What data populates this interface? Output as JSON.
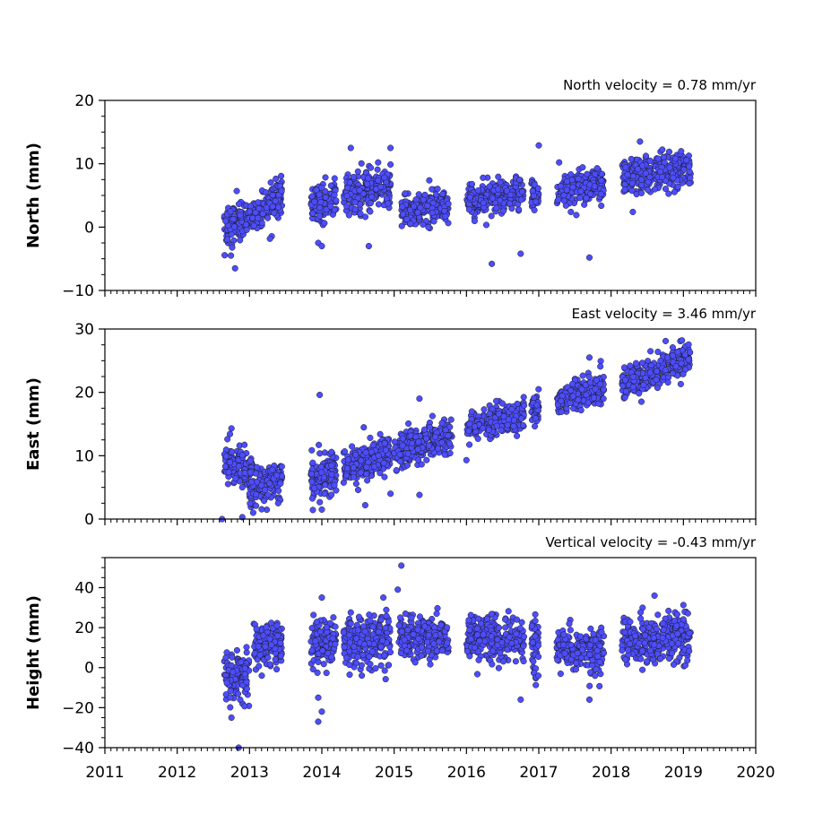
{
  "chart_data": [
    {
      "type": "scatter",
      "panel": "north",
      "ylabel": "North (mm)",
      "annotation": "North velocity = 0.78 mm/yr",
      "velocity_mm_per_yr": 0.78,
      "xlim": [
        2011,
        2020
      ],
      "ylim": [
        -10,
        20
      ],
      "yticks": [
        -10,
        0,
        10,
        20
      ],
      "xticks": [
        2011,
        2012,
        2013,
        2014,
        2015,
        2016,
        2017,
        2018,
        2019,
        2020
      ],
      "show_xtick_labels": false,
      "color": "#4d4dff",
      "segments": [
        {
          "x_start": 2012.65,
          "x_end": 2012.95,
          "y_start": 0.0,
          "y_end": 1.5,
          "spread": 1.8
        },
        {
          "x_start": 2012.95,
          "x_end": 2013.45,
          "y_start": 1.5,
          "y_end": 5.0,
          "spread": 1.5
        },
        {
          "x_start": 2013.85,
          "x_end": 2014.2,
          "y_start": 3.5,
          "y_end": 4.5,
          "spread": 1.5
        },
        {
          "x_start": 2014.3,
          "x_end": 2014.95,
          "y_start": 5.0,
          "y_end": 6.5,
          "spread": 1.8
        },
        {
          "x_start": 2015.1,
          "x_end": 2015.75,
          "y_start": 2.5,
          "y_end": 3.5,
          "spread": 1.5
        },
        {
          "x_start": 2016.0,
          "x_end": 2016.8,
          "y_start": 4.0,
          "y_end": 5.5,
          "spread": 1.2
        },
        {
          "x_start": 2016.9,
          "x_end": 2017.0,
          "y_start": 5.0,
          "y_end": 5.0,
          "spread": 1.2
        },
        {
          "x_start": 2017.25,
          "x_end": 2017.9,
          "y_start": 5.5,
          "y_end": 7.0,
          "spread": 1.5
        },
        {
          "x_start": 2018.15,
          "x_end": 2019.1,
          "y_start": 8.0,
          "y_end": 9.5,
          "spread": 1.5
        }
      ],
      "outliers": [
        {
          "x": 2012.8,
          "y": -6.5
        },
        {
          "x": 2013.95,
          "y": -2.5
        },
        {
          "x": 2014.0,
          "y": -3.0
        },
        {
          "x": 2014.65,
          "y": -3.0
        },
        {
          "x": 2016.35,
          "y": -5.8
        },
        {
          "x": 2016.75,
          "y": -4.2
        },
        {
          "x": 2017.7,
          "y": -4.8
        },
        {
          "x": 2014.4,
          "y": 12.5
        },
        {
          "x": 2014.95,
          "y": 12.5
        },
        {
          "x": 2017.0,
          "y": 12.9
        },
        {
          "x": 2018.4,
          "y": 13.5
        },
        {
          "x": 2018.3,
          "y": 2.4
        }
      ]
    },
    {
      "type": "scatter",
      "panel": "east",
      "ylabel": "East (mm)",
      "annotation": "East velocity = 3.46 mm/yr",
      "velocity_mm_per_yr": 3.46,
      "xlim": [
        2011,
        2020
      ],
      "ylim": [
        0,
        30
      ],
      "yticks": [
        0,
        10,
        20,
        30
      ],
      "xticks": [
        2011,
        2012,
        2013,
        2014,
        2015,
        2016,
        2017,
        2018,
        2019,
        2020
      ],
      "show_xtick_labels": false,
      "color": "#4d4dff",
      "segments": [
        {
          "x_start": 2012.65,
          "x_end": 2013.05,
          "y_start": 9.0,
          "y_end": 8.0,
          "spread": 1.6
        },
        {
          "x_start": 2013.0,
          "x_end": 2013.45,
          "y_start": 4.0,
          "y_end": 6.5,
          "spread": 1.6
        },
        {
          "x_start": 2013.85,
          "x_end": 2014.2,
          "y_start": 6.5,
          "y_end": 8.0,
          "spread": 2.0
        },
        {
          "x_start": 2014.3,
          "x_end": 2014.95,
          "y_start": 8.0,
          "y_end": 10.5,
          "spread": 1.6
        },
        {
          "x_start": 2015.0,
          "x_end": 2015.8,
          "y_start": 10.5,
          "y_end": 13.0,
          "spread": 1.6
        },
        {
          "x_start": 2016.0,
          "x_end": 2016.8,
          "y_start": 14.5,
          "y_end": 16.5,
          "spread": 1.2
        },
        {
          "x_start": 2016.9,
          "x_end": 2017.0,
          "y_start": 17.5,
          "y_end": 17.5,
          "spread": 1.2
        },
        {
          "x_start": 2017.25,
          "x_end": 2017.9,
          "y_start": 18.5,
          "y_end": 21.0,
          "spread": 1.4
        },
        {
          "x_start": 2018.15,
          "x_end": 2019.1,
          "y_start": 21.0,
          "y_end": 25.5,
          "spread": 1.3
        }
      ],
      "outliers": [
        {
          "x": 2013.97,
          "y": 19.6
        },
        {
          "x": 2012.62,
          "y": 0.0
        },
        {
          "x": 2012.9,
          "y": 0.3
        },
        {
          "x": 2014.0,
          "y": 1.5
        },
        {
          "x": 2013.05,
          "y": 1.0
        },
        {
          "x": 2014.6,
          "y": 2.2
        },
        {
          "x": 2015.35,
          "y": 19.0
        },
        {
          "x": 2016.0,
          "y": 9.3
        },
        {
          "x": 2012.75,
          "y": 14.3
        },
        {
          "x": 2017.7,
          "y": 25.5
        },
        {
          "x": 2018.98,
          "y": 28.2
        },
        {
          "x": 2015.35,
          "y": 3.8
        },
        {
          "x": 2014.95,
          "y": 4.0
        }
      ]
    },
    {
      "type": "scatter",
      "panel": "height",
      "ylabel": "Height (mm)",
      "annotation": "Vertical velocity = -0.43 mm/yr",
      "velocity_mm_per_yr": -0.43,
      "xlim": [
        2011,
        2020
      ],
      "ylim": [
        -40,
        55
      ],
      "yticks": [
        -40,
        -20,
        0,
        20,
        40
      ],
      "xticks": [
        2011,
        2012,
        2013,
        2014,
        2015,
        2016,
        2017,
        2018,
        2019,
        2020
      ],
      "xticklabels": [
        "2011",
        "2012",
        "2013",
        "2014",
        "2015",
        "2016",
        "2017",
        "2018",
        "2019",
        "2020"
      ],
      "show_xtick_labels": true,
      "color": "#4d4dff",
      "segments": [
        {
          "x_start": 2012.65,
          "x_end": 2013.0,
          "y_start": -5.0,
          "y_end": -3.0,
          "spread": 7.0
        },
        {
          "x_start": 2013.05,
          "x_end": 2013.45,
          "y_start": 10.0,
          "y_end": 13.0,
          "spread": 6.0
        },
        {
          "x_start": 2013.85,
          "x_end": 2014.2,
          "y_start": 12.0,
          "y_end": 12.0,
          "spread": 7.0
        },
        {
          "x_start": 2014.3,
          "x_end": 2014.95,
          "y_start": 12.0,
          "y_end": 14.0,
          "spread": 7.0
        },
        {
          "x_start": 2015.05,
          "x_end": 2015.75,
          "y_start": 16.0,
          "y_end": 13.0,
          "spread": 6.0
        },
        {
          "x_start": 2016.0,
          "x_end": 2016.8,
          "y_start": 16.0,
          "y_end": 12.0,
          "spread": 6.0
        },
        {
          "x_start": 2016.9,
          "x_end": 2017.0,
          "y_start": 10.0,
          "y_end": 12.0,
          "spread": 8.0
        },
        {
          "x_start": 2017.25,
          "x_end": 2017.9,
          "y_start": 10.0,
          "y_end": 8.0,
          "spread": 6.0
        },
        {
          "x_start": 2018.15,
          "x_end": 2019.1,
          "y_start": 12.0,
          "y_end": 15.0,
          "spread": 7.0
        }
      ],
      "outliers": [
        {
          "x": 2012.85,
          "y": -40.0
        },
        {
          "x": 2013.95,
          "y": -27.0
        },
        {
          "x": 2014.0,
          "y": -22.0
        },
        {
          "x": 2013.95,
          "y": -15.0
        },
        {
          "x": 2015.1,
          "y": 51.0
        },
        {
          "x": 2015.05,
          "y": 39.0
        },
        {
          "x": 2014.85,
          "y": 35.0
        },
        {
          "x": 2016.75,
          "y": -16.0
        },
        {
          "x": 2017.7,
          "y": -16.0
        },
        {
          "x": 2014.0,
          "y": 35.0
        },
        {
          "x": 2018.6,
          "y": 36.0
        },
        {
          "x": 2012.75,
          "y": -25.0
        }
      ]
    }
  ]
}
